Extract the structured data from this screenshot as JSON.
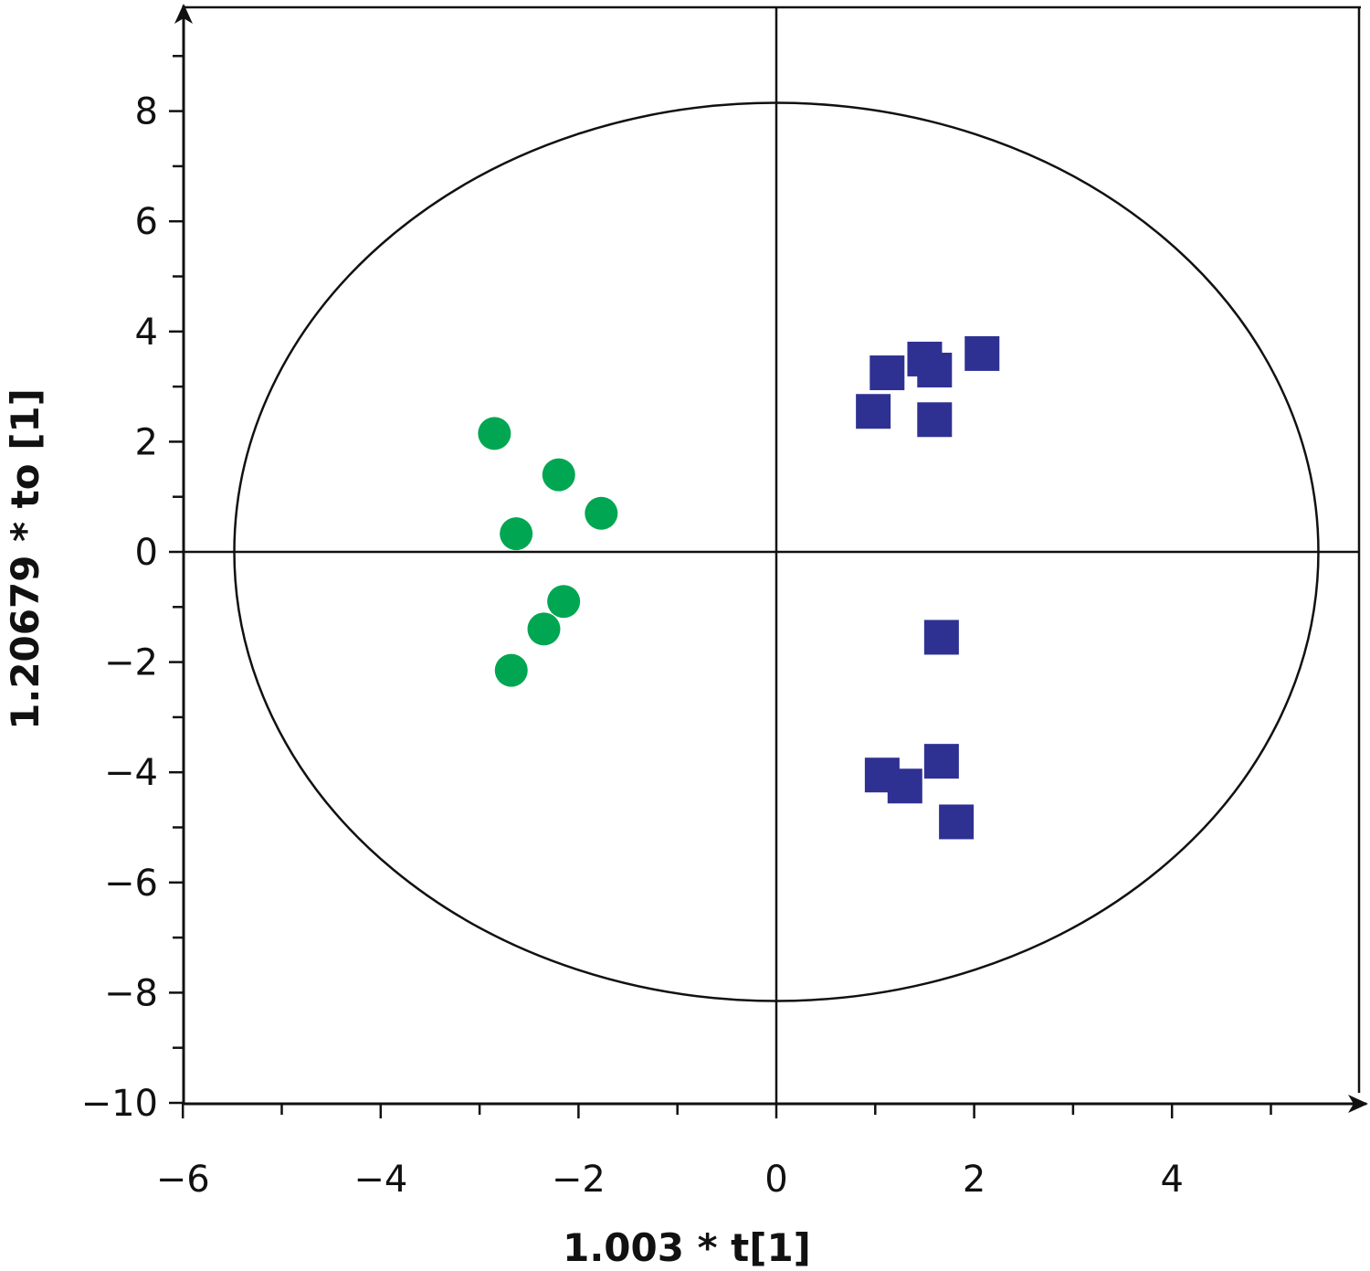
{
  "chart_data": {
    "type": "scatter",
    "title": "",
    "xlabel": "1.003 * t[1]",
    "ylabel": "1.20679 * to [1]",
    "xlim": [
      -6,
      6
    ],
    "ylim": [
      -10,
      10
    ],
    "x_ticks": [
      -6,
      -4,
      -2,
      0,
      2,
      4
    ],
    "x_tick_labels": [
      "−6",
      "−4",
      "−2",
      "0",
      "2",
      "4"
    ],
    "y_ticks": [
      -10,
      -8,
      -6,
      -4,
      -2,
      0,
      2,
      4,
      6,
      8
    ],
    "y_tick_labels": [
      "−10",
      "−8",
      "−6",
      "−4",
      "−2",
      "0",
      "2",
      "4",
      "6",
      "8"
    ],
    "grid": false,
    "ellipse": {
      "rx": 5.48,
      "ry": 8.15
    },
    "series": [
      {
        "marker": "circle",
        "color": "#00a651",
        "points": [
          [
            -2.85,
            2.15
          ],
          [
            -2.2,
            1.4
          ],
          [
            -1.77,
            0.7
          ],
          [
            -2.63,
            0.33
          ],
          [
            -2.15,
            -0.9
          ],
          [
            -2.35,
            -1.4
          ],
          [
            -2.68,
            -2.15
          ]
        ]
      },
      {
        "marker": "square",
        "color": "#2e3192",
        "points": [
          [
            1.12,
            3.25
          ],
          [
            1.5,
            3.5
          ],
          [
            1.6,
            3.3
          ],
          [
            2.08,
            3.6
          ],
          [
            0.98,
            2.55
          ],
          [
            1.6,
            2.4
          ],
          [
            1.67,
            -1.55
          ],
          [
            1.67,
            -3.8
          ],
          [
            1.07,
            -4.05
          ],
          [
            1.3,
            -4.25
          ],
          [
            1.82,
            -4.9
          ]
        ]
      }
    ]
  }
}
